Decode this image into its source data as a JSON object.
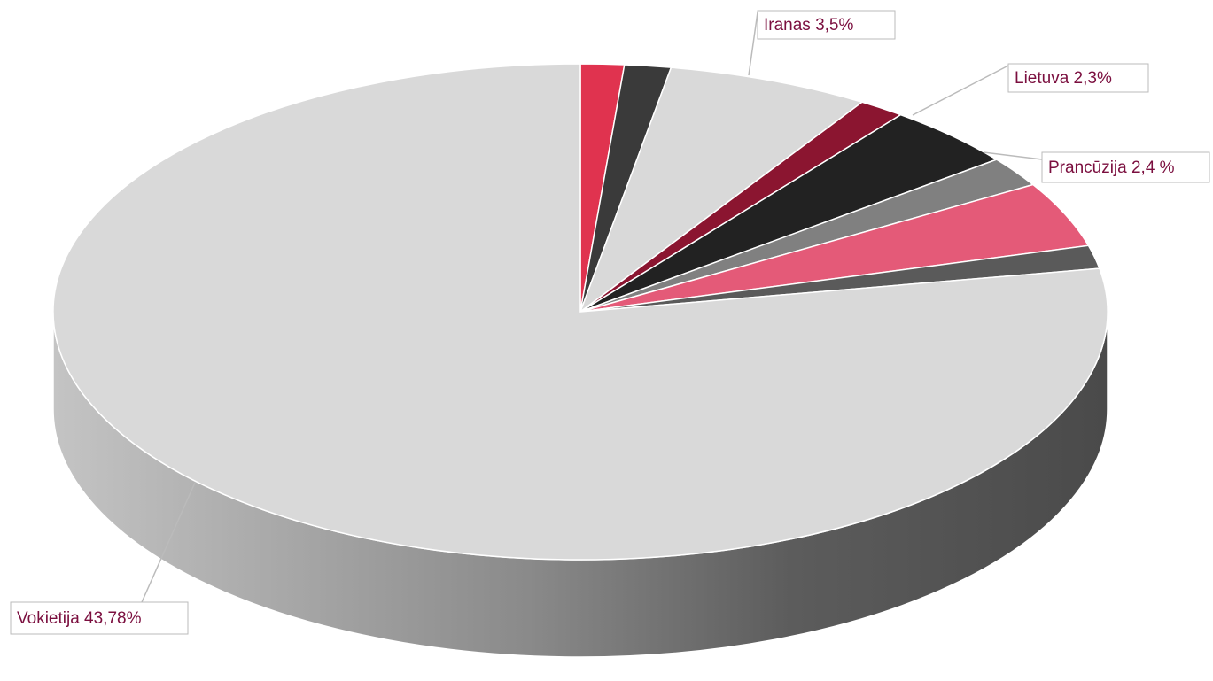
{
  "chart_data": {
    "type": "pie3d",
    "values": [
      0.75,
      0.8,
      3.5,
      0.8,
      2.3,
      1.1,
      2.4,
      0.85,
      43.78
    ],
    "value_labels": [
      null,
      null,
      "Iranas 3,5%",
      null,
      "Lietuva 2,3%",
      null,
      "Prancūzija 2,4 %",
      null,
      "Vokietija 43,78%"
    ],
    "colors": [
      "#e0334f",
      "#3a3a3a",
      "#d9d9d9",
      "#8b1530",
      "#222222",
      "#808080",
      "#e45a78",
      "#5a5a5a",
      "#d9d9d9"
    ]
  }
}
